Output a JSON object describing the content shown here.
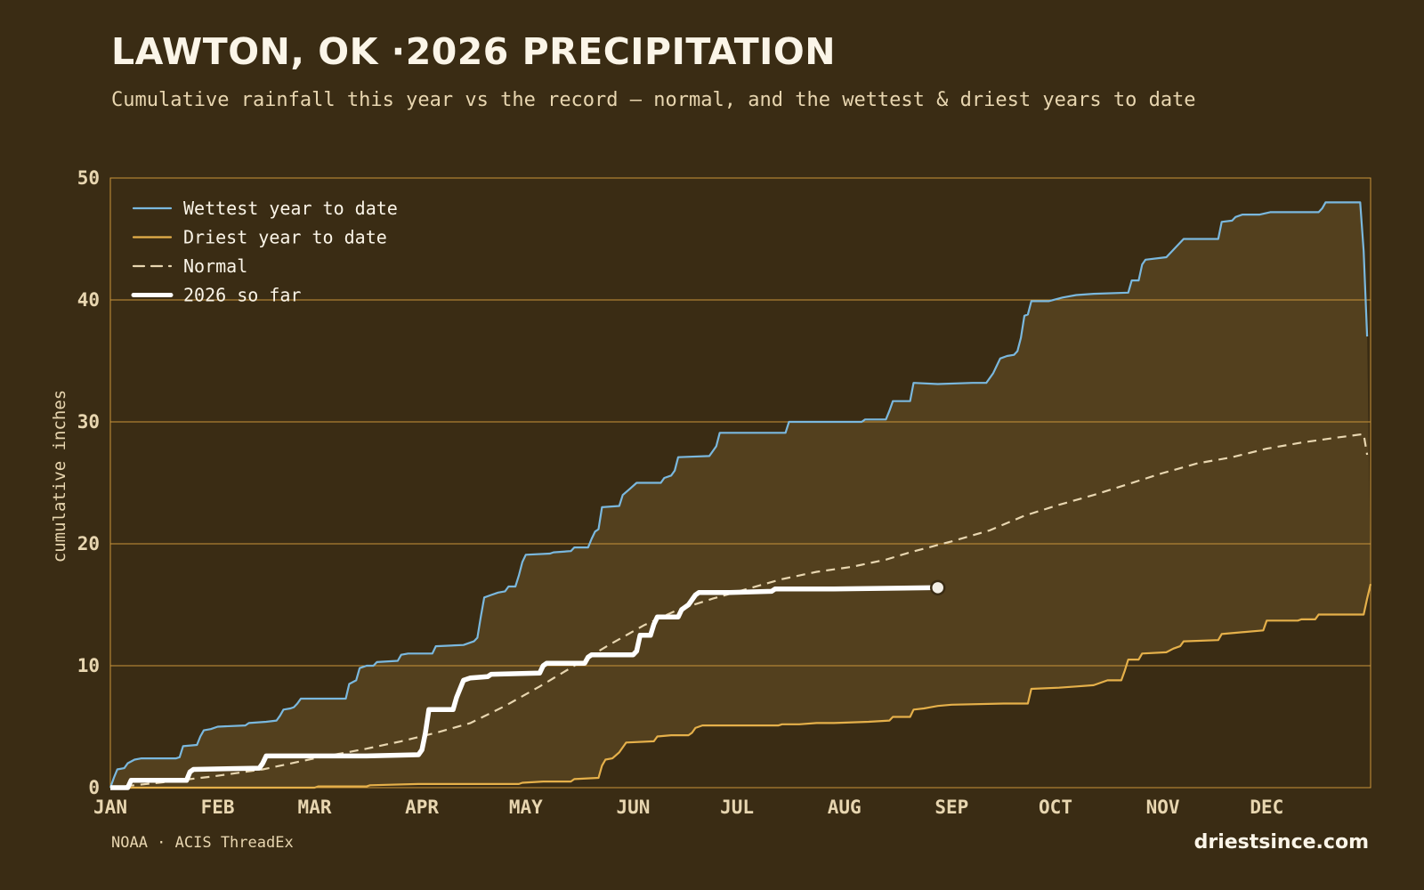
{
  "header": {
    "title": "LAWTON, OK ·2026 PRECIPITATION",
    "subtitle": "Cumulative rainfall this year vs the record — normal, and the wettest & driest years to date"
  },
  "footer": {
    "source": "NOAA · ACIS ThreadEx",
    "site": "driestsince.com"
  },
  "colors": {
    "background": "#3a2c14",
    "band_fill": "#53401e",
    "grid": "#c9953a",
    "wettest": "#7ab8de",
    "driest": "#e5b04a",
    "normal": "#e8d6b0",
    "current": "#ffffff"
  },
  "chart_data": {
    "type": "line",
    "title": "LAWTON, OK ·2026 PRECIPITATION",
    "xlabel": "",
    "ylabel": "cumulative inches",
    "x_unit": "day of year",
    "xlim": [
      1,
      365
    ],
    "ylim": [
      0,
      50
    ],
    "yticks": [
      0,
      10,
      20,
      30,
      40,
      50
    ],
    "month_ticks": [
      {
        "label": "JAN",
        "day": 1
      },
      {
        "label": "FEB",
        "day": 32
      },
      {
        "label": "MAR",
        "day": 60
      },
      {
        "label": "APR",
        "day": 91
      },
      {
        "label": "MAY",
        "day": 121
      },
      {
        "label": "JUN",
        "day": 152
      },
      {
        "label": "JUL",
        "day": 182
      },
      {
        "label": "AUG",
        "day": 213
      },
      {
        "label": "SEP",
        "day": 244
      },
      {
        "label": "OCT",
        "day": 274
      },
      {
        "label": "NOV",
        "day": 305
      },
      {
        "label": "DEC",
        "day": 335
      }
    ],
    "grid": true,
    "legend_position": "top-left",
    "series": [
      {
        "name": "Wettest year to date",
        "style": "solid",
        "points": [
          [
            1,
            0
          ],
          [
            2,
            0.8
          ],
          [
            3,
            1.5
          ],
          [
            5,
            1.6
          ],
          [
            6,
            2
          ],
          [
            8,
            2.3
          ],
          [
            10,
            2.4
          ],
          [
            20,
            2.4
          ],
          [
            21,
            2.5
          ],
          [
            22,
            3.4
          ],
          [
            26,
            3.5
          ],
          [
            27,
            4.2
          ],
          [
            28,
            4.7
          ],
          [
            30,
            4.8
          ],
          [
            32,
            5
          ],
          [
            40,
            5.1
          ],
          [
            41,
            5.3
          ],
          [
            46,
            5.4
          ],
          [
            49,
            5.5
          ],
          [
            50,
            5.9
          ],
          [
            51,
            6.4
          ],
          [
            53,
            6.5
          ],
          [
            54,
            6.6
          ],
          [
            55,
            6.9
          ],
          [
            56,
            7.3
          ],
          [
            68,
            7.3
          ],
          [
            69,
            7.3
          ],
          [
            70,
            8.5
          ],
          [
            72,
            8.8
          ],
          [
            73,
            9.8
          ],
          [
            75,
            10
          ],
          [
            77,
            10
          ],
          [
            78,
            10.3
          ],
          [
            84,
            10.4
          ],
          [
            85,
            10.9
          ],
          [
            87,
            11
          ],
          [
            94,
            11
          ],
          [
            95,
            11.6
          ],
          [
            103,
            11.7
          ],
          [
            104,
            11.8
          ],
          [
            106,
            12
          ],
          [
            107,
            12.3
          ],
          [
            108,
            14
          ],
          [
            109,
            15.6
          ],
          [
            111,
            15.8
          ],
          [
            113,
            16
          ],
          [
            115,
            16.1
          ],
          [
            116,
            16.5
          ],
          [
            118,
            16.5
          ],
          [
            119,
            17.4
          ],
          [
            120,
            18.5
          ],
          [
            121,
            19.1
          ],
          [
            128,
            19.2
          ],
          [
            129,
            19.3
          ],
          [
            134,
            19.4
          ],
          [
            135,
            19.7
          ],
          [
            139,
            19.7
          ],
          [
            140,
            20.4
          ],
          [
            141,
            21
          ],
          [
            142,
            21.2
          ],
          [
            143,
            23
          ],
          [
            148,
            23.1
          ],
          [
            149,
            24
          ],
          [
            151,
            24.5
          ],
          [
            153,
            25
          ],
          [
            160,
            25
          ],
          [
            161,
            25.4
          ],
          [
            163,
            25.6
          ],
          [
            164,
            26
          ],
          [
            165,
            27.1
          ],
          [
            174,
            27.2
          ],
          [
            176,
            28
          ],
          [
            177,
            29.1
          ],
          [
            186,
            29.1
          ],
          [
            196,
            29.1
          ],
          [
            197,
            30
          ],
          [
            212,
            30
          ],
          [
            218,
            30
          ],
          [
            219,
            30.2
          ],
          [
            225,
            30.2
          ],
          [
            226,
            30.9
          ],
          [
            227,
            31.7
          ],
          [
            232,
            31.7
          ],
          [
            233,
            33.2
          ],
          [
            240,
            33.1
          ],
          [
            250,
            33.2
          ],
          [
            254,
            33.2
          ],
          [
            256,
            34
          ],
          [
            257,
            34.6
          ],
          [
            258,
            35.2
          ],
          [
            260,
            35.4
          ],
          [
            262,
            35.5
          ],
          [
            263,
            35.8
          ],
          [
            264,
            36.9
          ],
          [
            265,
            38.7
          ],
          [
            266,
            38.8
          ],
          [
            267,
            39.9
          ],
          [
            272,
            39.9
          ],
          [
            276,
            40.2
          ],
          [
            280,
            40.4
          ],
          [
            285,
            40.5
          ],
          [
            295,
            40.6
          ],
          [
            296,
            41.6
          ],
          [
            298,
            41.6
          ],
          [
            299,
            42.9
          ],
          [
            300,
            43.3
          ],
          [
            306,
            43.5
          ],
          [
            311,
            45
          ],
          [
            321,
            45
          ],
          [
            322,
            46.4
          ],
          [
            325,
            46.5
          ],
          [
            326,
            46.8
          ],
          [
            328,
            47
          ],
          [
            333,
            47
          ],
          [
            336,
            47.2
          ],
          [
            350,
            47.2
          ],
          [
            351,
            47.5
          ],
          [
            352,
            48
          ],
          [
            361,
            48
          ],
          [
            362,
            48
          ],
          [
            363,
            44
          ],
          [
            364,
            37
          ]
        ]
      },
      {
        "name": "Driest year to date",
        "style": "solid",
        "points": [
          [
            1,
            0
          ],
          [
            60,
            0
          ],
          [
            61,
            0.1
          ],
          [
            75,
            0.1
          ],
          [
            76,
            0.2
          ],
          [
            90,
            0.3
          ],
          [
            110,
            0.3
          ],
          [
            119,
            0.3
          ],
          [
            120,
            0.4
          ],
          [
            126,
            0.5
          ],
          [
            134,
            0.5
          ],
          [
            135,
            0.7
          ],
          [
            142,
            0.8
          ],
          [
            143,
            1.8
          ],
          [
            144,
            2.3
          ],
          [
            146,
            2.4
          ],
          [
            148,
            2.9
          ],
          [
            149,
            3.3
          ],
          [
            150,
            3.7
          ],
          [
            158,
            3.8
          ],
          [
            159,
            4.2
          ],
          [
            163,
            4.3
          ],
          [
            168,
            4.3
          ],
          [
            169,
            4.5
          ],
          [
            170,
            4.9
          ],
          [
            172,
            5.1
          ],
          [
            194,
            5.1
          ],
          [
            195,
            5.2
          ],
          [
            200,
            5.2
          ],
          [
            205,
            5.3
          ],
          [
            210,
            5.3
          ],
          [
            220,
            5.4
          ],
          [
            226,
            5.5
          ],
          [
            227,
            5.8
          ],
          [
            232,
            5.8
          ],
          [
            233,
            6.4
          ],
          [
            236,
            6.5
          ],
          [
            238,
            6.6
          ],
          [
            240,
            6.7
          ],
          [
            244,
            6.8
          ],
          [
            259,
            6.9
          ],
          [
            266,
            6.9
          ],
          [
            267,
            8.1
          ],
          [
            275,
            8.2
          ],
          [
            280,
            8.3
          ],
          [
            285,
            8.4
          ],
          [
            289,
            8.8
          ],
          [
            293,
            8.8
          ],
          [
            294,
            9.6
          ],
          [
            295,
            10.5
          ],
          [
            298,
            10.5
          ],
          [
            299,
            11
          ],
          [
            306,
            11.1
          ],
          [
            308,
            11.4
          ],
          [
            310,
            11.6
          ],
          [
            311,
            12
          ],
          [
            321,
            12.1
          ],
          [
            322,
            12.6
          ],
          [
            326,
            12.7
          ],
          [
            334,
            12.9
          ],
          [
            335,
            13.7
          ],
          [
            344,
            13.7
          ],
          [
            345,
            13.8
          ],
          [
            349,
            13.8
          ],
          [
            350,
            14.2
          ],
          [
            363,
            14.2
          ],
          [
            364,
            15.5
          ],
          [
            365,
            16.7
          ]
        ]
      },
      {
        "name": "Normal",
        "style": "dashed",
        "points": [
          [
            1,
            0
          ],
          [
            15,
            0.4
          ],
          [
            30,
            0.9
          ],
          [
            45,
            1.5
          ],
          [
            60,
            2.4
          ],
          [
            75,
            3.2
          ],
          [
            85,
            3.8
          ],
          [
            95,
            4.5
          ],
          [
            105,
            5.3
          ],
          [
            115,
            6.7
          ],
          [
            125,
            8.3
          ],
          [
            135,
            10
          ],
          [
            145,
            11.7
          ],
          [
            155,
            13.3
          ],
          [
            165,
            14.6
          ],
          [
            175,
            15.5
          ],
          [
            185,
            16.3
          ],
          [
            195,
            17.1
          ],
          [
            205,
            17.7
          ],
          [
            215,
            18.1
          ],
          [
            225,
            18.7
          ],
          [
            232,
            19.3
          ],
          [
            244,
            20.2
          ],
          [
            255,
            21.1
          ],
          [
            265,
            22.3
          ],
          [
            275,
            23.2
          ],
          [
            285,
            24
          ],
          [
            295,
            24.9
          ],
          [
            305,
            25.8
          ],
          [
            315,
            26.6
          ],
          [
            325,
            27.1
          ],
          [
            335,
            27.8
          ],
          [
            345,
            28.3
          ],
          [
            355,
            28.7
          ],
          [
            363,
            29
          ],
          [
            364,
            27.3
          ]
        ]
      },
      {
        "name": "2026 so far",
        "style": "thick",
        "points": [
          [
            1,
            0
          ],
          [
            6,
            0
          ],
          [
            7,
            0.6
          ],
          [
            20,
            0.6
          ],
          [
            23,
            0.6
          ],
          [
            24,
            1.3
          ],
          [
            25,
            1.5
          ],
          [
            44,
            1.6
          ],
          [
            45,
            2
          ],
          [
            46,
            2.6
          ],
          [
            65,
            2.6
          ],
          [
            75,
            2.6
          ],
          [
            90,
            2.7
          ],
          [
            91,
            3.1
          ],
          [
            92,
            4.5
          ],
          [
            93,
            6.4
          ],
          [
            100,
            6.4
          ],
          [
            101,
            7.4
          ],
          [
            102,
            8.1
          ],
          [
            103,
            8.8
          ],
          [
            105,
            9
          ],
          [
            110,
            9.1
          ],
          [
            111,
            9.3
          ],
          [
            125,
            9.4
          ],
          [
            126,
            10
          ],
          [
            127,
            10.2
          ],
          [
            138,
            10.2
          ],
          [
            139,
            10.7
          ],
          [
            140,
            10.9
          ],
          [
            152,
            10.9
          ],
          [
            153,
            11.2
          ],
          [
            154,
            12.5
          ],
          [
            157,
            12.5
          ],
          [
            158,
            13.4
          ],
          [
            159,
            14
          ],
          [
            165,
            14
          ],
          [
            166,
            14.6
          ],
          [
            167,
            14.8
          ],
          [
            168,
            15
          ],
          [
            170,
            15.8
          ],
          [
            171,
            16
          ],
          [
            180,
            16
          ],
          [
            192,
            16.1
          ],
          [
            193,
            16.3
          ],
          [
            210,
            16.3
          ],
          [
            240,
            16.4
          ]
        ]
      }
    ]
  }
}
